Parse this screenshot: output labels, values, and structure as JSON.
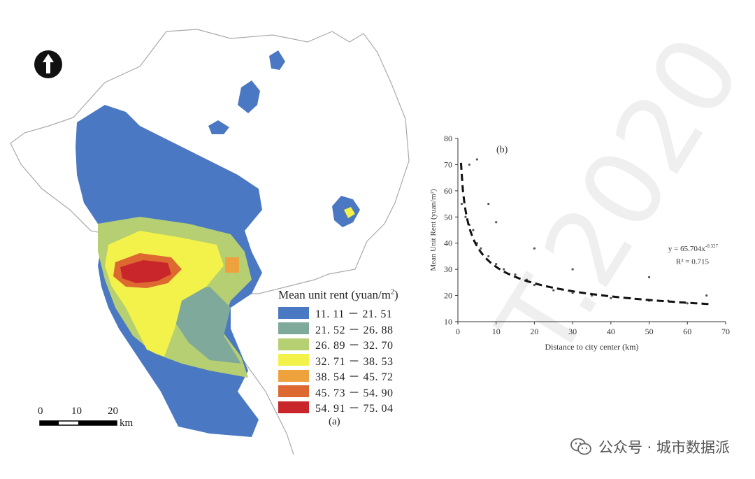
{
  "map": {
    "legend_title": "Mean unit rent (yuan/m",
    "legend_title_sup": "2",
    "legend_title_close": ")",
    "legend": [
      {
        "label": "11. 11 － 21. 51",
        "color": "#4a78c2"
      },
      {
        "label": "21. 52 － 26. 88",
        "color": "#7fa99a"
      },
      {
        "label": "26. 89 － 32. 70",
        "color": "#b5cf72"
      },
      {
        "label": "32. 71 － 38. 53",
        "color": "#f2f24a"
      },
      {
        "label": "38. 54 － 45. 72",
        "color": "#eea23e"
      },
      {
        "label": "45. 73 － 54. 90",
        "color": "#dd6830"
      },
      {
        "label": "54. 91 － 75. 04",
        "color": "#c8262a"
      }
    ],
    "panel_label": "(a)",
    "scale_ticks": [
      "0",
      "10",
      "20"
    ],
    "scale_unit": "km",
    "north_icon": "north-arrow-icon"
  },
  "chart_data": {
    "type": "scatter",
    "panel_label": "(b)",
    "xlabel": "Distance to city center (km)",
    "ylabel": "Mean Unit Rent (yuan/m²)",
    "xlim": [
      0,
      70
    ],
    "ylim": [
      10,
      80
    ],
    "xticks": [
      "0",
      "10",
      "20",
      "30",
      "40",
      "50",
      "60",
      "70"
    ],
    "yticks": [
      "10",
      "20",
      "30",
      "40",
      "50",
      "60",
      "70",
      "80"
    ],
    "fit": {
      "equation_text": "y = 65.704x",
      "exponent_text": "-0.327",
      "r2_text": "R² = 0.715",
      "a": 65.704,
      "b": -0.327,
      "style": "dashed"
    },
    "point_color": "#555555",
    "sample_points": [
      [
        1,
        55
      ],
      [
        2,
        50
      ],
      [
        3,
        47
      ],
      [
        4,
        45
      ],
      [
        5,
        40
      ],
      [
        6,
        38
      ],
      [
        8,
        35
      ],
      [
        10,
        32
      ],
      [
        12,
        30
      ],
      [
        15,
        28
      ],
      [
        18,
        26
      ],
      [
        20,
        24
      ],
      [
        25,
        22
      ],
      [
        30,
        21
      ],
      [
        35,
        20
      ],
      [
        40,
        19
      ],
      [
        45,
        19
      ],
      [
        50,
        18
      ],
      [
        55,
        18
      ],
      [
        60,
        17
      ],
      [
        3,
        70
      ],
      [
        5,
        72
      ],
      [
        8,
        55
      ],
      [
        10,
        48
      ],
      [
        20,
        38
      ],
      [
        30,
        30
      ],
      [
        50,
        27
      ],
      [
        65,
        20
      ]
    ]
  },
  "watermark": {
    "text": "公众号 · 城市数据派",
    "diag_text": "T.2020"
  }
}
